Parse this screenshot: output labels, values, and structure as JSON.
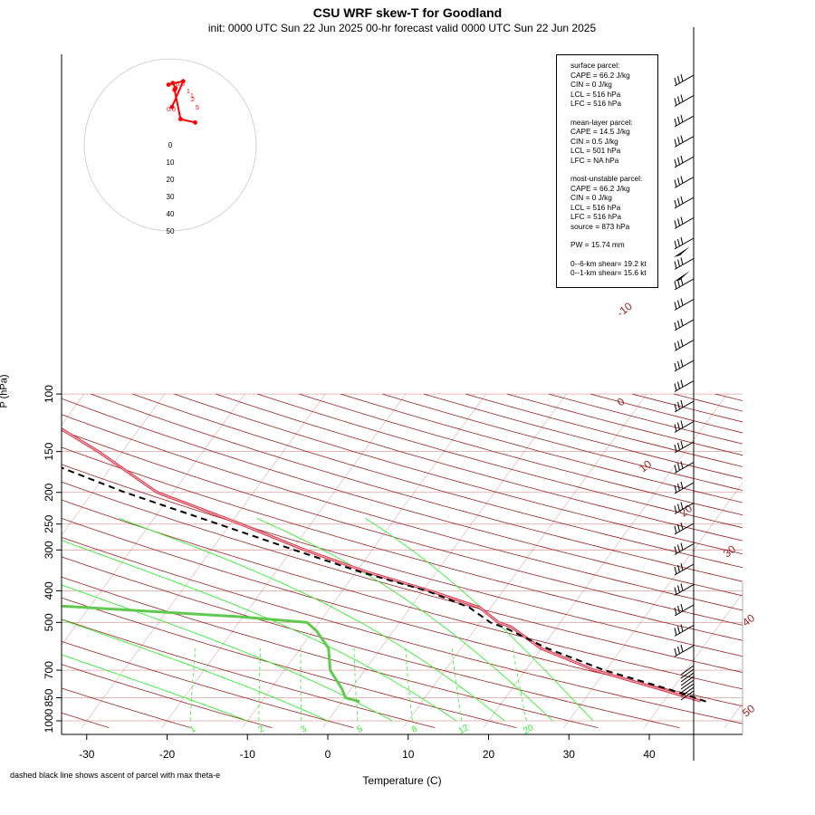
{
  "page": {
    "title": "CSU WRF skew-T for Goodland",
    "subtitle": "init: 0000 UTC Sun 22 Jun 2025     00-hr forecast valid 0000 UTC Sun 22 Jun 2025",
    "xlabel": "Temperature (C)",
    "ylabel": "P (hPa)",
    "footnote": "dashed black line shows ascent of parcel with max theta-e"
  },
  "infobox": {
    "surface": [
      "surface parcel:",
      "CAPE = 66.2 J/kg",
      "CIN = 0 J/kg",
      "LCL = 516 hPa",
      "LFC = 516 hPa"
    ],
    "mean_layer": [
      "mean-layer parcel:",
      "CAPE = 14.5 J/kg",
      "CIN = 0.5 J/kg",
      "LCL = 501 hPa",
      "LFC = NA hPa"
    ],
    "most_unstable": [
      "most-unstable parcel:",
      "CAPE = 66.2 J/kg",
      "CIN = 0 J/kg",
      "LCL = 516 hPa",
      "LFC = 516 hPa",
      "source = 873 hPa"
    ],
    "pw": "PW =  15.74 mm",
    "shear": [
      "0--6-km shear= 19.2 kt",
      "0--1-km shear= 15.6 kt"
    ]
  },
  "colors": {
    "temperature": "#e0354a",
    "dewpoint": "#5fca4e",
    "parcel": "#000000",
    "isotherm": "#9b2020",
    "isobar": "#e0a0a0",
    "dry_adiabat": "#a02020",
    "moist_adiabat": "#33ee33",
    "mixing_ratio": "#33ee33",
    "hodograph": "#ff0000"
  },
  "chart_data": {
    "type": "skew-t",
    "title": "CSU WRF skew-T for Goodland",
    "xlabel": "Temperature (C)",
    "ylabel": "P (hPa)",
    "xlim": [
      -33,
      52
    ],
    "ylim": [
      1050,
      100
    ],
    "pressure_ticks": [
      100,
      150,
      200,
      250,
      300,
      400,
      500,
      700,
      850,
      1000
    ],
    "temperature_ticks": [
      -30,
      -20,
      -10,
      0,
      10,
      20,
      30,
      40
    ],
    "isotherm_labels": [
      -10,
      0,
      10,
      20,
      30,
      40,
      50
    ],
    "mixing_ratio_labels": [
      "1",
      "2",
      "3",
      "5",
      "8",
      "12",
      "20"
    ],
    "temperature_profile": [
      {
        "p": 870,
        "t": 44.6
      },
      {
        "p": 850,
        "t": 42.9
      },
      {
        "p": 800,
        "t": 38.5
      },
      {
        "p": 700,
        "t": 28.6
      },
      {
        "p": 600,
        "t": 19.9
      },
      {
        "p": 516,
        "t": 14.3
      },
      {
        "p": 500,
        "t": 12.3
      },
      {
        "p": 450,
        "t": 8.6
      },
      {
        "p": 400,
        "t": 0.9
      },
      {
        "p": 350,
        "t": -8.7
      },
      {
        "p": 300,
        "t": -18.4
      },
      {
        "p": 250,
        "t": -28.7
      },
      {
        "p": 200,
        "t": -42.0
      },
      {
        "p": 150,
        "t": -53.0
      },
      {
        "p": 110,
        "t": -66.0
      }
    ],
    "dewpoint_profile": [
      {
        "p": 873,
        "t": 2.2
      },
      {
        "p": 850,
        "t": 0.1
      },
      {
        "p": 800,
        "t": -1.1
      },
      {
        "p": 700,
        "t": -4.3
      },
      {
        "p": 600,
        "t": -6.5
      },
      {
        "p": 530,
        "t": -9.6
      },
      {
        "p": 500,
        "t": -11.5
      },
      {
        "p": 480,
        "t": -20.5
      },
      {
        "p": 440,
        "t": -47.4
      },
      {
        "p": 415,
        "t": -62.2
      },
      {
        "p": 395,
        "t": -48.4
      },
      {
        "p": 370,
        "t": -50.6
      },
      {
        "p": 350,
        "t": -48.3
      },
      {
        "p": 300,
        "t": -52.7
      },
      {
        "p": 280,
        "t": -52.4
      },
      {
        "p": 260,
        "t": -52.2
      },
      {
        "p": 250,
        "t": -54.8
      },
      {
        "p": 200,
        "t": -67.5
      },
      {
        "p": 170,
        "t": -74.0
      }
    ],
    "parcel_profile": [
      {
        "p": 873,
        "t": 45.3
      },
      {
        "p": 850,
        "t": 43.6
      },
      {
        "p": 800,
        "t": 39.5
      },
      {
        "p": 700,
        "t": 29.8
      },
      {
        "p": 600,
        "t": 20.7
      },
      {
        "p": 520,
        "t": 13.7
      },
      {
        "p": 500,
        "t": 11.3
      },
      {
        "p": 450,
        "t": 7.3
      },
      {
        "p": 400,
        "t": 0.5
      },
      {
        "p": 350,
        "t": -9.5
      },
      {
        "p": 300,
        "t": -19.7
      },
      {
        "p": 250,
        "t": -31.5
      },
      {
        "p": 200,
        "t": -46.0
      },
      {
        "p": 160,
        "t": -59.0
      }
    ],
    "hodograph": {
      "labels": [
        "0.0",
        "5",
        "1",
        "1",
        "2",
        "0.5"
      ],
      "ring_labels": [
        "0",
        "10",
        "20",
        "30",
        "40",
        "50"
      ],
      "points": [
        {
          "u": 29,
          "v": 13
        },
        {
          "u": 12,
          "v": 15
        },
        {
          "u": 5,
          "v": 32
        },
        {
          "u": 6,
          "v": 33
        },
        {
          "u": 3,
          "v": 36
        },
        {
          "u": -2,
          "v": 35
        },
        {
          "u": 15,
          "v": 37
        },
        {
          "u": 2,
          "v": 22
        }
      ]
    }
  }
}
